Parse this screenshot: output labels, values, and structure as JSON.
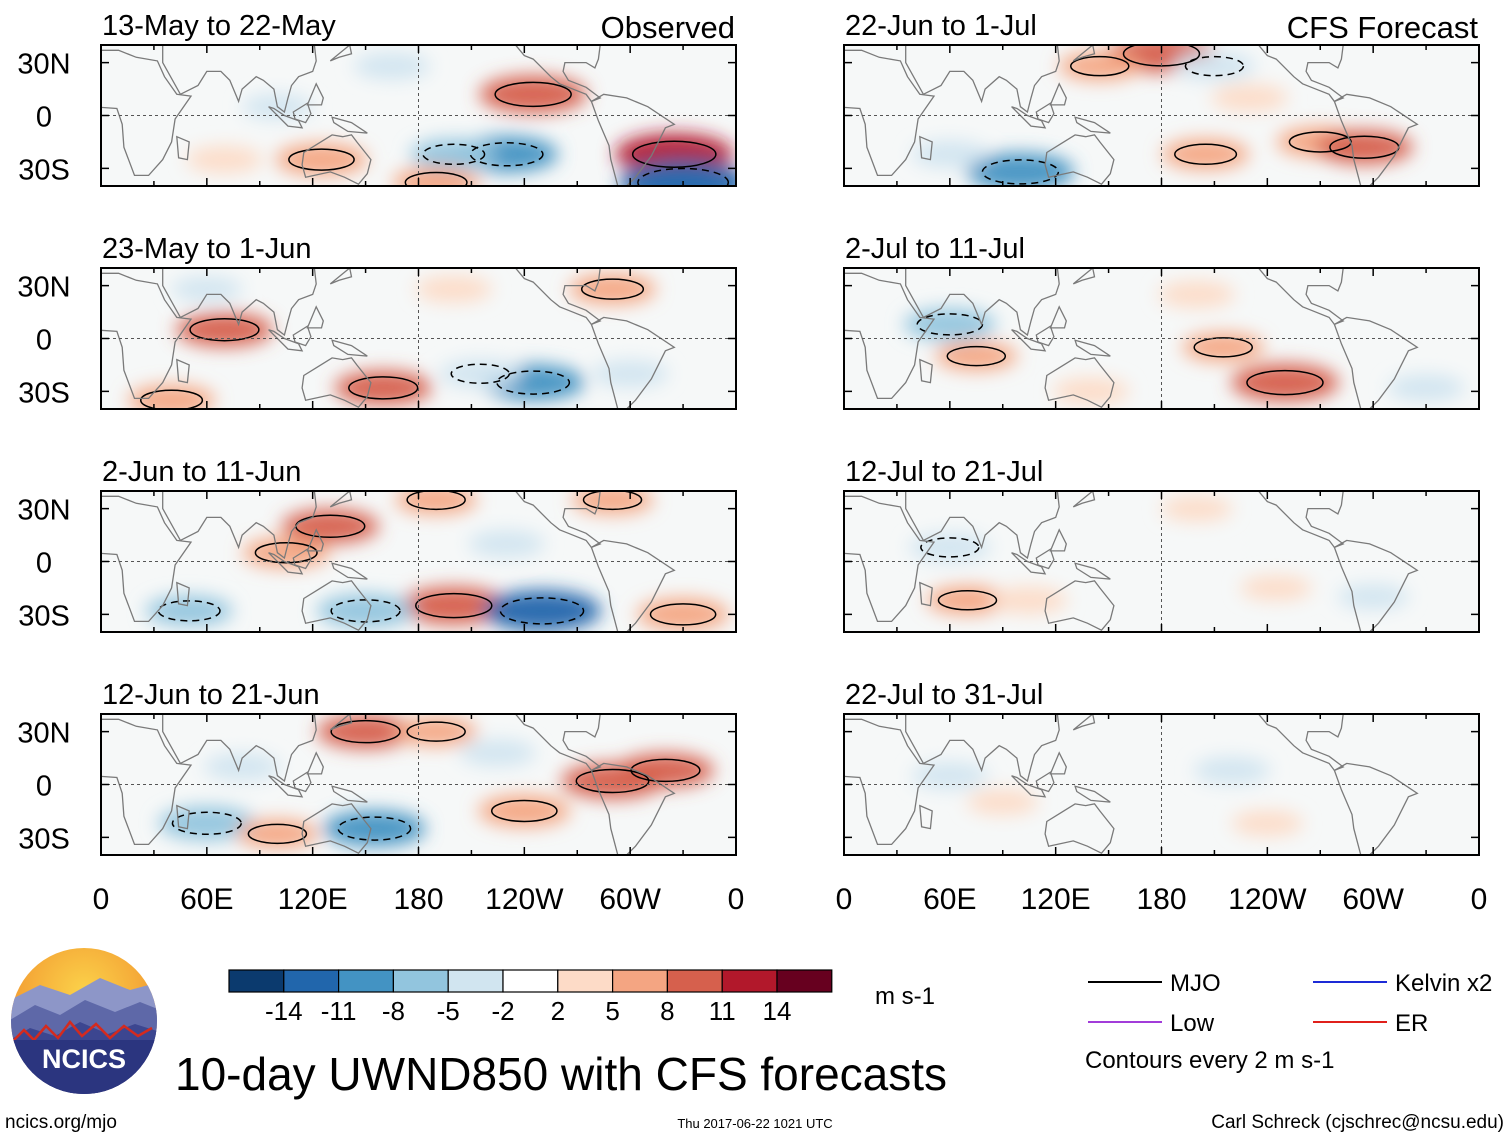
{
  "title": "10-day UWND850 with CFS forecasts",
  "column_headers": {
    "observed": "Observed",
    "forecast": "CFS Forecast"
  },
  "units": "m s-1",
  "contour_note": "Contours every 2 m s-1",
  "footer": {
    "site": "ncics.org/mjo",
    "timestamp": "Thu 2017-06-22 1021 UTC",
    "credit": "Carl Schreck (cjschrec@ncsu.edu)"
  },
  "logo": {
    "text": "NCICS"
  },
  "legend": [
    {
      "label": "MJO",
      "color": "#000000"
    },
    {
      "label": "Kelvin x2",
      "color": "#1d2bd6"
    },
    {
      "label": "Low",
      "color": "#a23cd9"
    },
    {
      "label": "ER",
      "color": "#e0201b"
    }
  ],
  "colorbar": {
    "ticks": [
      "-14",
      "-11",
      "-8",
      "-5",
      "-2",
      "2",
      "5",
      "8",
      "11",
      "14"
    ],
    "colors": [
      "#0b3a6e",
      "#2166ac",
      "#4393c3",
      "#92c5de",
      "#d1e5f0",
      "#ffffff",
      "#fddbc7",
      "#f4a582",
      "#d6604d",
      "#b2182b",
      "#67001f"
    ]
  },
  "chart_data": {
    "type": "heatmap",
    "variable": "UWND850",
    "lat_ticks": [
      "30N",
      "0",
      "30S"
    ],
    "lon_ticks": [
      "0",
      "60E",
      "120E",
      "180",
      "120W",
      "60W",
      "0"
    ],
    "lat_range": [
      -40,
      40
    ],
    "lon_range": [
      0,
      360
    ],
    "panels": [
      {
        "title": "13-May to 22-May",
        "column": "Observed",
        "blobs": [
          {
            "lon": 325,
            "lat": -22,
            "value": 12
          },
          {
            "lon": 330,
            "lat": -38,
            "value": -14
          },
          {
            "lon": 245,
            "lat": 12,
            "value": 10
          },
          {
            "lon": 230,
            "lat": -22,
            "value": -9
          },
          {
            "lon": 200,
            "lat": -22,
            "value": -6
          },
          {
            "lon": 125,
            "lat": -25,
            "value": 7
          },
          {
            "lon": 70,
            "lat": -25,
            "value": 4
          },
          {
            "lon": 165,
            "lat": 28,
            "value": -4
          },
          {
            "lon": 100,
            "lat": 5,
            "value": -3
          },
          {
            "lon": 190,
            "lat": -38,
            "value": 6
          }
        ]
      },
      {
        "title": "22-Jun to 1-Jul",
        "column": "CFS Forecast",
        "blobs": [
          {
            "lon": 180,
            "lat": 35,
            "value": 10
          },
          {
            "lon": 210,
            "lat": 28,
            "value": -5
          },
          {
            "lon": 100,
            "lat": -32,
            "value": -10
          },
          {
            "lon": 205,
            "lat": -22,
            "value": 6
          },
          {
            "lon": 270,
            "lat": -15,
            "value": 6
          },
          {
            "lon": 295,
            "lat": -18,
            "value": 8
          },
          {
            "lon": 60,
            "lat": -22,
            "value": -4
          },
          {
            "lon": 145,
            "lat": 28,
            "value": 5
          },
          {
            "lon": 230,
            "lat": 10,
            "value": 4
          }
        ]
      },
      {
        "title": "23-May to 1-Jun",
        "column": "Observed",
        "blobs": [
          {
            "lon": 70,
            "lat": 5,
            "value": 8
          },
          {
            "lon": 160,
            "lat": -28,
            "value": 8
          },
          {
            "lon": 40,
            "lat": -35,
            "value": 6
          },
          {
            "lon": 245,
            "lat": -25,
            "value": -9
          },
          {
            "lon": 215,
            "lat": -20,
            "value": -5
          },
          {
            "lon": 290,
            "lat": 28,
            "value": 6
          },
          {
            "lon": 200,
            "lat": 28,
            "value": 4
          },
          {
            "lon": 300,
            "lat": -20,
            "value": -4
          },
          {
            "lon": 60,
            "lat": 28,
            "value": -3
          }
        ]
      },
      {
        "title": "2-Jul to 11-Jul",
        "column": "CFS Forecast",
        "blobs": [
          {
            "lon": 250,
            "lat": -25,
            "value": 10
          },
          {
            "lon": 215,
            "lat": -5,
            "value": 5
          },
          {
            "lon": 75,
            "lat": -10,
            "value": 5
          },
          {
            "lon": 60,
            "lat": 8,
            "value": -7
          },
          {
            "lon": 330,
            "lat": -28,
            "value": -4
          },
          {
            "lon": 200,
            "lat": 25,
            "value": 4
          },
          {
            "lon": 140,
            "lat": -30,
            "value": 4
          }
        ]
      },
      {
        "title": "2-Jun to 11-Jun",
        "column": "Observed",
        "blobs": [
          {
            "lon": 200,
            "lat": -25,
            "value": 10
          },
          {
            "lon": 250,
            "lat": -28,
            "value": -12
          },
          {
            "lon": 150,
            "lat": -28,
            "value": -8
          },
          {
            "lon": 130,
            "lat": 20,
            "value": 8
          },
          {
            "lon": 330,
            "lat": -30,
            "value": 7
          },
          {
            "lon": 50,
            "lat": -28,
            "value": -6
          },
          {
            "lon": 105,
            "lat": 5,
            "value": 6
          },
          {
            "lon": 190,
            "lat": 35,
            "value": 5
          },
          {
            "lon": 290,
            "lat": 35,
            "value": 5
          },
          {
            "lon": 230,
            "lat": 10,
            "value": -4
          }
        ]
      },
      {
        "title": "12-Jul to 21-Jul",
        "column": "CFS Forecast",
        "blobs": [
          {
            "lon": 70,
            "lat": -22,
            "value": 5
          },
          {
            "lon": 105,
            "lat": -22,
            "value": 4
          },
          {
            "lon": 60,
            "lat": 8,
            "value": -5
          },
          {
            "lon": 245,
            "lat": -15,
            "value": 3
          },
          {
            "lon": 300,
            "lat": -20,
            "value": -3
          },
          {
            "lon": 200,
            "lat": 30,
            "value": 3
          }
        ]
      },
      {
        "title": "12-Jun to 21-Jun",
        "column": "Observed",
        "blobs": [
          {
            "lon": 60,
            "lat": -22,
            "value": -8
          },
          {
            "lon": 155,
            "lat": -25,
            "value": -9
          },
          {
            "lon": 100,
            "lat": -28,
            "value": 5
          },
          {
            "lon": 240,
            "lat": -15,
            "value": 7
          },
          {
            "lon": 290,
            "lat": 2,
            "value": 9
          },
          {
            "lon": 320,
            "lat": 8,
            "value": 8
          },
          {
            "lon": 150,
            "lat": 30,
            "value": 8
          },
          {
            "lon": 190,
            "lat": 30,
            "value": 5
          },
          {
            "lon": 225,
            "lat": 18,
            "value": -4
          },
          {
            "lon": 80,
            "lat": 10,
            "value": -4
          }
        ]
      },
      {
        "title": "22-Jul to 31-Jul",
        "column": "CFS Forecast",
        "blobs": [
          {
            "lon": 220,
            "lat": 8,
            "value": -4
          },
          {
            "lon": 60,
            "lat": 5,
            "value": -4
          },
          {
            "lon": 240,
            "lat": -22,
            "value": 3
          },
          {
            "lon": 90,
            "lat": -10,
            "value": 3
          }
        ]
      }
    ]
  }
}
